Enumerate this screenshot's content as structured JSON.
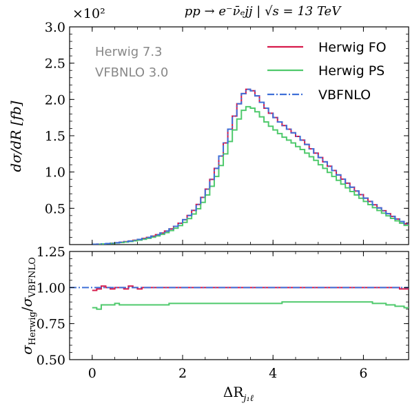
{
  "chart_data": [
    {
      "type": "line",
      "panel": "main",
      "title": "pp → e⁻ν̄ₑjj   |   √s = 13 TeV",
      "ylabel": "dσ/dR [fb]",
      "xlabel": "",
      "y_multiplier": "×10²",
      "ylim": [
        0,
        3.0
      ],
      "xlim": [
        -0.5,
        7.0
      ],
      "yticks": [
        "0.5",
        "1.0",
        "1.5",
        "2.0",
        "2.5",
        "3.0"
      ],
      "ytick_values": [
        0.5,
        1.0,
        1.5,
        2.0,
        2.5,
        3.0
      ],
      "xticks": [
        0,
        2,
        4,
        6
      ],
      "info_lines": [
        "Herwig 7.3",
        "VFBNLO 3.0"
      ],
      "legend": "top-right",
      "bin_width": 0.1,
      "x_start": 0.0,
      "series": [
        {
          "name": "Herwig FO",
          "color": "#d6194a",
          "style": "solid",
          "values": [
            0.003,
            0.006,
            0.01,
            0.014,
            0.019,
            0.025,
            0.032,
            0.04,
            0.049,
            0.059,
            0.071,
            0.084,
            0.099,
            0.116,
            0.136,
            0.159,
            0.186,
            0.216,
            0.252,
            0.294,
            0.343,
            0.401,
            0.471,
            0.553,
            0.65,
            0.764,
            0.898,
            1.05,
            1.22,
            1.4,
            1.59,
            1.77,
            1.94,
            2.08,
            2.14,
            2.12,
            2.05,
            1.96,
            1.88,
            1.81,
            1.75,
            1.69,
            1.64,
            1.59,
            1.54,
            1.49,
            1.44,
            1.38,
            1.32,
            1.26,
            1.2,
            1.14,
            1.08,
            1.02,
            0.96,
            0.902,
            0.846,
            0.79,
            0.738,
            0.688,
            0.64,
            0.594,
            0.548,
            0.506,
            0.466,
            0.426,
            0.388,
            0.352,
            0.318,
            0.286
          ]
        },
        {
          "name": "Herwig PS",
          "color": "#4ec96b",
          "style": "solid",
          "values": [
            0.003,
            0.005,
            0.009,
            0.012,
            0.017,
            0.022,
            0.028,
            0.035,
            0.043,
            0.052,
            0.062,
            0.074,
            0.087,
            0.102,
            0.12,
            0.141,
            0.165,
            0.193,
            0.225,
            0.262,
            0.306,
            0.358,
            0.421,
            0.494,
            0.581,
            0.684,
            0.803,
            0.939,
            1.09,
            1.25,
            1.42,
            1.58,
            1.73,
            1.85,
            1.9,
            1.88,
            1.83,
            1.76,
            1.69,
            1.63,
            1.58,
            1.53,
            1.48,
            1.44,
            1.4,
            1.35,
            1.31,
            1.26,
            1.21,
            1.16,
            1.1,
            1.05,
            0.994,
            0.939,
            0.885,
            0.833,
            0.782,
            0.731,
            0.684,
            0.638,
            0.594,
            0.551,
            0.509,
            0.47,
            0.433,
            0.396,
            0.361,
            0.328,
            0.296,
            0.265
          ]
        },
        {
          "name": "VBFNLO",
          "color": "#3e6fd8",
          "style": "dashdot",
          "values": [
            0.003,
            0.006,
            0.01,
            0.014,
            0.019,
            0.025,
            0.032,
            0.04,
            0.049,
            0.059,
            0.071,
            0.084,
            0.099,
            0.116,
            0.136,
            0.159,
            0.186,
            0.216,
            0.252,
            0.294,
            0.343,
            0.401,
            0.471,
            0.553,
            0.65,
            0.764,
            0.898,
            1.05,
            1.22,
            1.4,
            1.59,
            1.77,
            1.94,
            2.08,
            2.14,
            2.12,
            2.05,
            1.96,
            1.88,
            1.81,
            1.75,
            1.69,
            1.64,
            1.59,
            1.54,
            1.49,
            1.44,
            1.38,
            1.32,
            1.26,
            1.2,
            1.14,
            1.08,
            1.02,
            0.96,
            0.902,
            0.846,
            0.79,
            0.738,
            0.688,
            0.64,
            0.594,
            0.548,
            0.506,
            0.466,
            0.426,
            0.388,
            0.352,
            0.318,
            0.286
          ]
        }
      ]
    },
    {
      "type": "line",
      "panel": "ratio",
      "ylabel": "σHerwig/σVBFNLO",
      "ylabel_main": "σ",
      "ylabel_num": "Herwig",
      "ylabel_den": "VBFNLO",
      "xlabel": "ΔRj₁ℓ",
      "xlabel_main": "ΔR",
      "xlabel_sub": "j₁ℓ",
      "ylim": [
        0.5,
        1.25
      ],
      "xlim": [
        -0.5,
        7.0
      ],
      "yticks": [
        "0.50",
        "0.75",
        "1.00",
        "1.25"
      ],
      "ytick_values": [
        0.5,
        0.75,
        1.0,
        1.25
      ],
      "xticks": [
        0,
        2,
        4,
        6
      ],
      "xtick_labels": [
        "0",
        "2",
        "4",
        "6"
      ],
      "bin_width": 0.1,
      "x_start": 0.0,
      "series": [
        {
          "name": "Herwig FO",
          "color": "#d6194a",
          "style": "solid",
          "values": [
            0.98,
            0.99,
            1.01,
            1.0,
            0.99,
            1.0,
            1.0,
            0.99,
            1.01,
            1.0,
            0.99,
            1.0,
            1.0,
            1.0,
            1.0,
            1.0,
            1.0,
            1.0,
            1.0,
            1.0,
            1.0,
            1.0,
            1.0,
            1.0,
            1.0,
            1.0,
            1.0,
            1.0,
            1.0,
            1.0,
            1.0,
            1.0,
            1.0,
            1.0,
            1.0,
            1.0,
            1.0,
            1.0,
            1.0,
            1.0,
            1.0,
            1.0,
            1.0,
            1.0,
            1.0,
            1.0,
            1.0,
            1.0,
            1.0,
            1.0,
            1.0,
            1.0,
            1.0,
            1.0,
            1.0,
            1.0,
            1.0,
            1.0,
            1.0,
            1.0,
            1.0,
            1.0,
            1.0,
            1.0,
            1.0,
            1.0,
            1.0,
            1.0,
            0.99,
            0.99
          ]
        },
        {
          "name": "Herwig PS",
          "color": "#4ec96b",
          "style": "solid",
          "values": [
            0.86,
            0.85,
            0.88,
            0.88,
            0.88,
            0.89,
            0.88,
            0.88,
            0.88,
            0.88,
            0.88,
            0.88,
            0.88,
            0.88,
            0.88,
            0.88,
            0.88,
            0.89,
            0.89,
            0.89,
            0.89,
            0.89,
            0.89,
            0.89,
            0.89,
            0.89,
            0.89,
            0.89,
            0.89,
            0.89,
            0.89,
            0.89,
            0.89,
            0.89,
            0.89,
            0.89,
            0.89,
            0.89,
            0.89,
            0.89,
            0.89,
            0.89,
            0.9,
            0.9,
            0.9,
            0.9,
            0.9,
            0.9,
            0.9,
            0.9,
            0.9,
            0.9,
            0.9,
            0.9,
            0.9,
            0.9,
            0.9,
            0.9,
            0.9,
            0.9,
            0.9,
            0.9,
            0.89,
            0.89,
            0.89,
            0.88,
            0.88,
            0.87,
            0.87,
            0.86
          ]
        },
        {
          "name": "VBFNLO",
          "color": "#3e6fd8",
          "style": "dashdot",
          "values": [
            1.0,
            1.0
          ]
        }
      ]
    }
  ]
}
